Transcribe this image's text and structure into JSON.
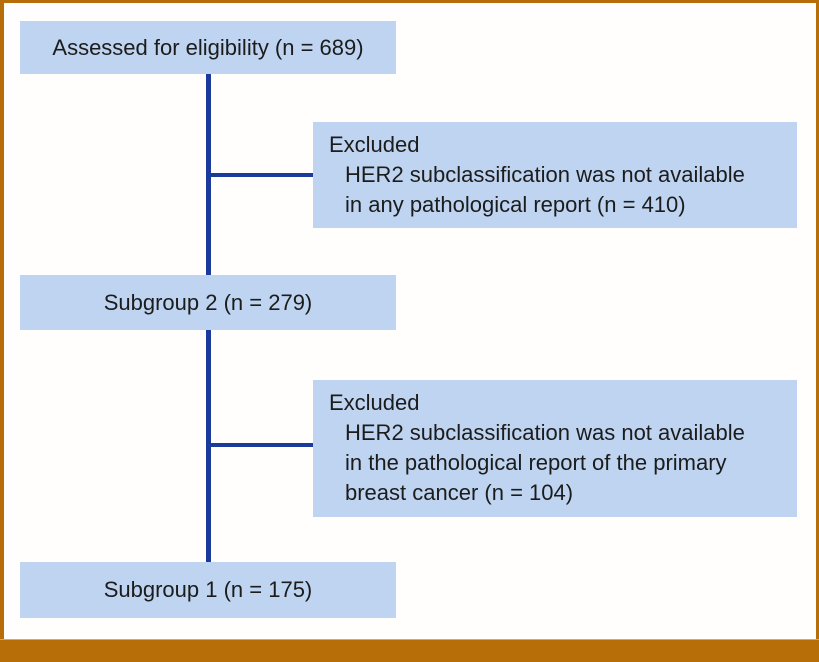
{
  "diagram": {
    "type": "flowchart",
    "boxes": {
      "assessed": {
        "label": "Assessed for eligibility (n = 689)"
      },
      "excluded1": {
        "title": "Excluded",
        "lines": [
          "HER2 subclassification was not available",
          "in any pathological report (n = 410)"
        ]
      },
      "subgroup2": {
        "label": "Subgroup 2 (n = 279)"
      },
      "excluded2": {
        "title": "Excluded",
        "lines": [
          "HER2 subclassification was not available",
          "in the pathological report of the primary",
          "breast cancer (n = 104)"
        ]
      },
      "subgroup1": {
        "label": "Subgroup 1 (n = 175)"
      }
    },
    "colors": {
      "box_fill": "#bed4f0",
      "connector": "#1a3a9c",
      "frame": "#b76d08",
      "text": "#1c1c1c"
    }
  }
}
